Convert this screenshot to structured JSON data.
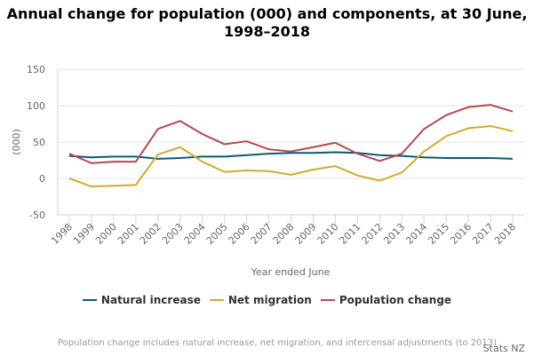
{
  "chart_data": {
    "type": "line",
    "title": "Annual change for population (000) and components, at 30 June, 1998–2018",
    "xlabel": "Year ended June",
    "ylabel": "(000)",
    "ylim": [
      -50,
      150
    ],
    "yticks": [
      -50,
      0,
      50,
      100,
      150
    ],
    "categories": [
      "1998",
      "1999",
      "2000",
      "2001",
      "2002",
      "2003",
      "2004",
      "2005",
      "2006",
      "2007",
      "2008",
      "2009",
      "2010",
      "2011",
      "2012",
      "2013",
      "2014",
      "2015",
      "2016",
      "2017",
      "2018"
    ],
    "grid": true,
    "legend": "bottom",
    "series": [
      {
        "name": "Natural increase",
        "color": "#0e5a73",
        "values": [
          31,
          29,
          30,
          30,
          27,
          28,
          30,
          30,
          32,
          34,
          35,
          35,
          36,
          35,
          32,
          31,
          29,
          28,
          28,
          28,
          27
        ]
      },
      {
        "name": "Net migration",
        "color": "#d3aa2e",
        "values": [
          0,
          -11,
          -10,
          -9,
          33,
          43,
          23,
          9,
          11,
          10,
          5,
          12,
          17,
          4,
          -3,
          8,
          37,
          58,
          69,
          72,
          65
        ]
      },
      {
        "name": "Population change",
        "color": "#b5494f",
        "values": [
          34,
          21,
          23,
          23,
          68,
          79,
          61,
          47,
          51,
          40,
          37,
          43,
          49,
          34,
          24,
          34,
          68,
          87,
          98,
          101,
          92
        ]
      }
    ],
    "footnote": "Population change includes natural increase, net migration, and intercensal adjustments (to 2013)",
    "credit": "Stats NZ"
  }
}
